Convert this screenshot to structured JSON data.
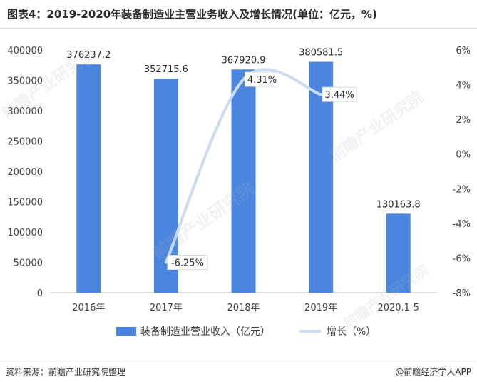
{
  "page": {
    "title": "图表4：2019-2020年装备制造业主营业务收入及增长情况(单位：亿元，%)",
    "source": "资料来源：前瞻产业研究院整理",
    "credit": "@前瞻经济学人APP",
    "watermark_text": "前瞻产业研究院"
  },
  "colors": {
    "bar": "#4a86e0",
    "line": "#c9dcf2",
    "axis_text": "#404040",
    "axis_line": "#bfbfbf"
  },
  "chart_data": {
    "type": "bar",
    "title": "图表4：2019-2020年装备制造业主营业务收入及增长情况(单位：亿元，%)",
    "categories": [
      "2016年",
      "2017年",
      "2018年",
      "2019年",
      "2020.1-5"
    ],
    "y_ticks": [
      "0",
      "50000",
      "100000",
      "150000",
      "200000",
      "250000",
      "300000",
      "350000",
      "400000"
    ],
    "y2_ticks": [
      "-8%",
      "-6%",
      "-4%",
      "-2%",
      "0%",
      "2%",
      "4%",
      "6%"
    ],
    "ylim": [
      0,
      400000
    ],
    "y2lim": [
      -8,
      6
    ],
    "grid": false,
    "legend_position": "bottom",
    "series": [
      {
        "name": "装备制造业营业收入（亿元）",
        "type": "bar",
        "axis": "left",
        "values": [
          376237.2,
          352715.6,
          367920.9,
          380581.5,
          130163.8
        ],
        "labels": [
          "376237.2",
          "352715.6",
          "367920.9",
          "380581.5",
          "130163.8"
        ]
      },
      {
        "name": "增长（%）",
        "type": "line",
        "axis": "right",
        "values": [
          null,
          -6.25,
          4.31,
          3.44,
          null
        ],
        "labels": [
          "",
          "-6.25%",
          "4.31%",
          "3.44%",
          ""
        ]
      }
    ]
  }
}
